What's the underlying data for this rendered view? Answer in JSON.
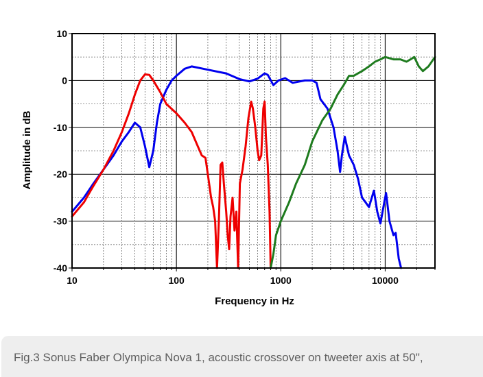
{
  "chart_data": {
    "type": "line",
    "xlabel": "Frequency in Hz",
    "ylabel": "Amplitude in dB",
    "xscale": "log",
    "xlim": [
      10,
      30000
    ],
    "ylim": [
      -40,
      10
    ],
    "xticks": [
      10,
      100,
      1000,
      10000
    ],
    "xtick_labels": [
      "10",
      "100",
      "1000",
      "10000"
    ],
    "yticks": [
      10,
      0,
      -10,
      -20,
      -30,
      -40
    ],
    "ytick_labels": [
      "10",
      "0",
      "-10",
      "-20",
      "-30",
      "-40"
    ],
    "grid": true,
    "series": [
      {
        "color": "#0000ee",
        "points": [
          [
            10,
            -28
          ],
          [
            13,
            -25
          ],
          [
            16,
            -22
          ],
          [
            20,
            -19
          ],
          [
            25,
            -16
          ],
          [
            30,
            -13
          ],
          [
            35,
            -11
          ],
          [
            40,
            -9
          ],
          [
            45,
            -10
          ],
          [
            50,
            -14
          ],
          [
            55,
            -18.5
          ],
          [
            60,
            -15
          ],
          [
            65,
            -9
          ],
          [
            70,
            -5
          ],
          [
            80,
            -2
          ],
          [
            90,
            0
          ],
          [
            100,
            1
          ],
          [
            120,
            2.5
          ],
          [
            140,
            3
          ],
          [
            200,
            2.3
          ],
          [
            300,
            1.5
          ],
          [
            400,
            0.3
          ],
          [
            500,
            -0.2
          ],
          [
            600,
            0.4
          ],
          [
            700,
            1.5
          ],
          [
            750,
            1.2
          ],
          [
            850,
            -1
          ],
          [
            950,
            0
          ],
          [
            1100,
            0.5
          ],
          [
            1300,
            -0.5
          ],
          [
            1700,
            0
          ],
          [
            2000,
            0
          ],
          [
            2200,
            -0.5
          ],
          [
            2400,
            -4
          ],
          [
            2800,
            -6
          ],
          [
            3200,
            -10
          ],
          [
            3500,
            -15
          ],
          [
            3700,
            -19.5
          ],
          [
            3850,
            -16
          ],
          [
            4100,
            -12
          ],
          [
            4500,
            -16
          ],
          [
            5000,
            -18
          ],
          [
            5500,
            -21
          ],
          [
            6000,
            -25
          ],
          [
            6500,
            -26
          ],
          [
            7000,
            -27
          ],
          [
            7800,
            -23.5
          ],
          [
            8400,
            -28
          ],
          [
            9000,
            -30.5
          ],
          [
            9800,
            -26
          ],
          [
            10200,
            -24
          ],
          [
            11000,
            -30
          ],
          [
            12000,
            -33
          ],
          [
            12600,
            -32.5
          ],
          [
            13500,
            -38
          ],
          [
            14200,
            -40
          ]
        ]
      },
      {
        "color": "#ee0000",
        "points": [
          [
            10,
            -29
          ],
          [
            13,
            -26
          ],
          [
            16,
            -22.5
          ],
          [
            20,
            -19
          ],
          [
            25,
            -15
          ],
          [
            30,
            -11
          ],
          [
            35,
            -7
          ],
          [
            40,
            -3
          ],
          [
            45,
            0
          ],
          [
            50,
            1.3
          ],
          [
            55,
            1.2
          ],
          [
            60,
            0
          ],
          [
            70,
            -2.5
          ],
          [
            80,
            -5
          ],
          [
            100,
            -7
          ],
          [
            120,
            -9
          ],
          [
            140,
            -11
          ],
          [
            160,
            -14
          ],
          [
            175,
            -16
          ],
          [
            190,
            -16.5
          ],
          [
            200,
            -20
          ],
          [
            215,
            -25
          ],
          [
            225,
            -27
          ],
          [
            235,
            -30
          ],
          [
            245,
            -40
          ],
          [
            255,
            -30
          ],
          [
            265,
            -18
          ],
          [
            275,
            -17.5
          ],
          [
            285,
            -22
          ],
          [
            300,
            -28
          ],
          [
            310,
            -33
          ],
          [
            320,
            -36
          ],
          [
            330,
            -29
          ],
          [
            345,
            -25
          ],
          [
            360,
            -32
          ],
          [
            375,
            -28
          ],
          [
            390,
            -40
          ],
          [
            405,
            -22
          ],
          [
            430,
            -19
          ],
          [
            460,
            -14
          ],
          [
            490,
            -8
          ],
          [
            520,
            -4.5
          ],
          [
            540,
            -6
          ],
          [
            570,
            -10
          ],
          [
            600,
            -15
          ],
          [
            620,
            -17
          ],
          [
            650,
            -16
          ],
          [
            680,
            -6
          ],
          [
            700,
            -4.5
          ],
          [
            720,
            -12
          ],
          [
            750,
            -18
          ],
          [
            780,
            -28
          ],
          [
            800,
            -40
          ]
        ]
      },
      {
        "color": "#1e7b1e",
        "points": [
          [
            800,
            -40
          ],
          [
            850,
            -37
          ],
          [
            900,
            -33
          ],
          [
            1000,
            -30
          ],
          [
            1200,
            -26
          ],
          [
            1400,
            -22
          ],
          [
            1700,
            -18
          ],
          [
            2000,
            -13
          ],
          [
            2500,
            -8.5
          ],
          [
            3000,
            -6
          ],
          [
            3500,
            -3
          ],
          [
            4000,
            -1
          ],
          [
            4500,
            1
          ],
          [
            5000,
            1
          ],
          [
            6000,
            2
          ],
          [
            7000,
            3
          ],
          [
            8000,
            4
          ],
          [
            9000,
            4.5
          ],
          [
            10000,
            5
          ],
          [
            12000,
            4.5
          ],
          [
            14000,
            4.5
          ],
          [
            16000,
            4
          ],
          [
            17500,
            4.5
          ],
          [
            19000,
            5
          ],
          [
            21000,
            3
          ],
          [
            23000,
            2
          ],
          [
            26000,
            3
          ],
          [
            30000,
            5
          ]
        ]
      }
    ]
  },
  "caption": "Fig.3 Sonus Faber Olympica Nova 1, acoustic crossover on tweeter axis at 50\","
}
